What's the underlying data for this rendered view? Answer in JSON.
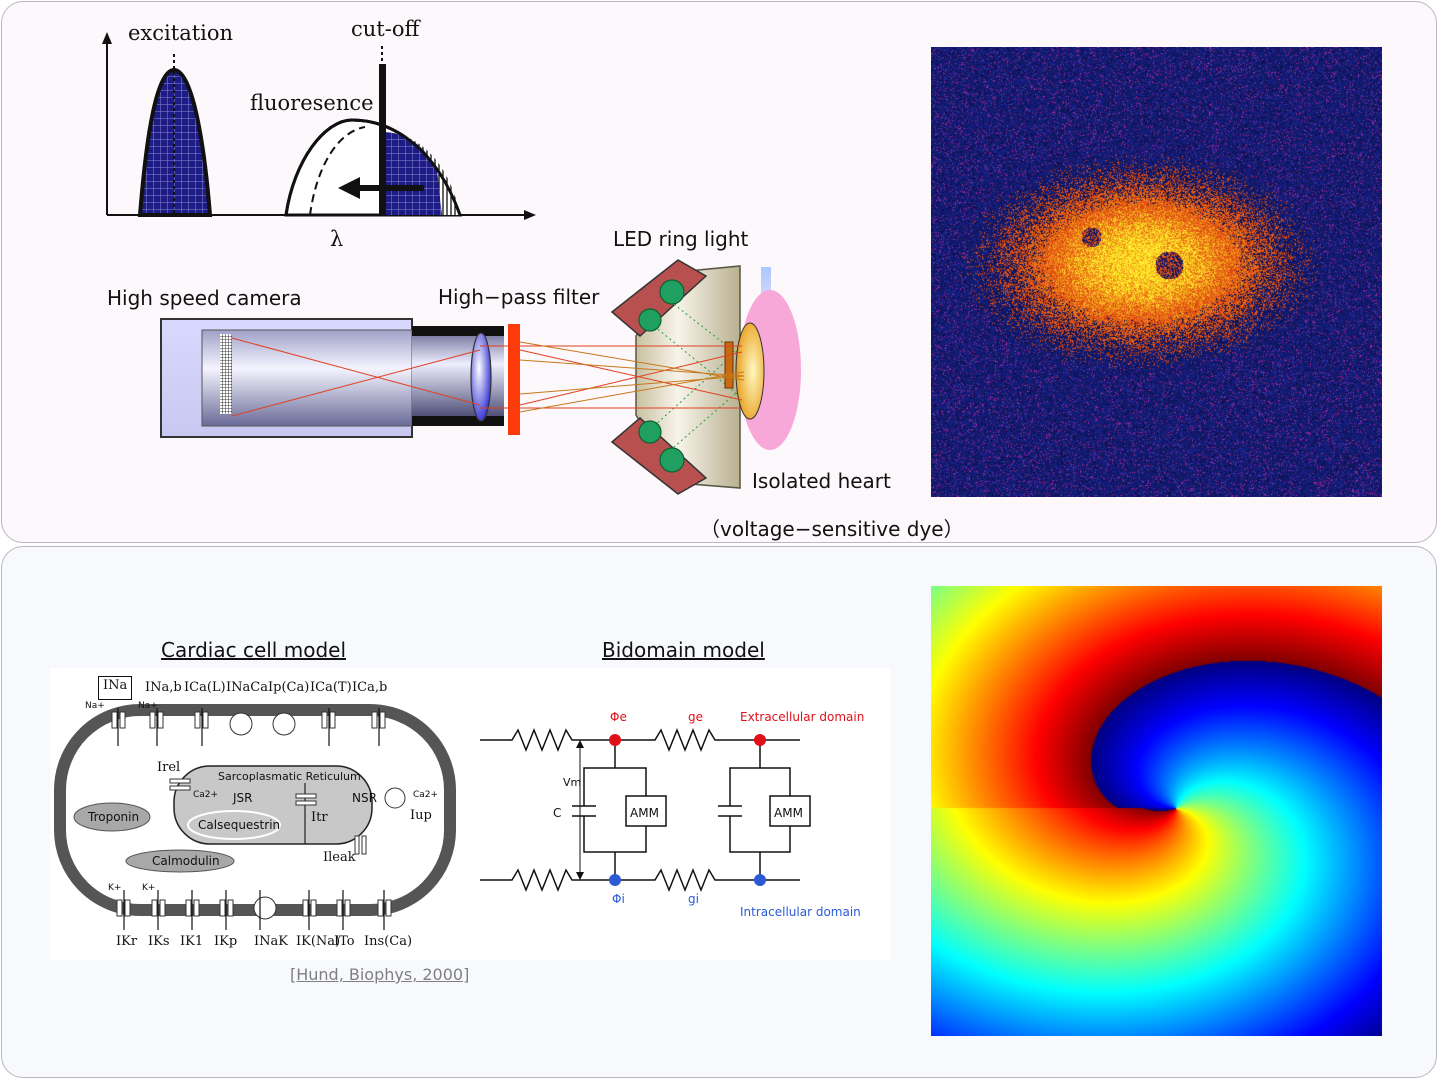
{
  "spectrum": {
    "excitation": "excitation",
    "cutoff": "cut-off",
    "fluorescence": "fluoresence",
    "axis_x": "λ"
  },
  "setup": {
    "camera": "High speed camera",
    "filter": "High−pass filter",
    "led": "LED ring light",
    "heart": "Isolated heart",
    "dye": "（voltage−sensitive dye）"
  },
  "cell_model": {
    "title": "Cardiac cell model",
    "citation": "[Hund, Biophys, 2000]",
    "top_currents": [
      "INa",
      "INa,b",
      "ICa(L)",
      "INaCa",
      "Ip(Ca)",
      "ICa(T)",
      "ICa,b"
    ],
    "bottom_currents": [
      "IKr",
      "IKs",
      "IK1",
      "IKp",
      "INaK",
      "IK(Na)",
      "ITo",
      "Ins(Ca)"
    ],
    "organelle": "Sarcoplasmatic Reticulum",
    "jsr": "JSR",
    "nsr": "NSR",
    "calsequestrin": "Calsequestrin",
    "troponin": "Troponin",
    "calmodulin": "Calmodulin",
    "irel": "Irel",
    "itr": "Itr",
    "iup": "Iup",
    "ileak": "Ileak",
    "ca_ion": "Ca2+",
    "na_ion": "Na+",
    "k_ion": "K+"
  },
  "bidomain": {
    "title": "Bidomain model",
    "phi_e": "Φe",
    "g_e": "ge",
    "extracellular": "Extracellular domain",
    "phi_i": "Φi",
    "g_i": "gi",
    "intracellular": "Intracellular domain",
    "vm": "Vm",
    "c": "C",
    "amm": "AMM"
  },
  "colors": {
    "dark_blue": "#1a1a8a",
    "filter_red": "#ff3a0a",
    "heart_pink": "#f7a8d8",
    "extra_red": "#e0101a",
    "intra_blue": "#2a5ad8",
    "led_frame": "#b85050",
    "led_green": "#20a060"
  }
}
